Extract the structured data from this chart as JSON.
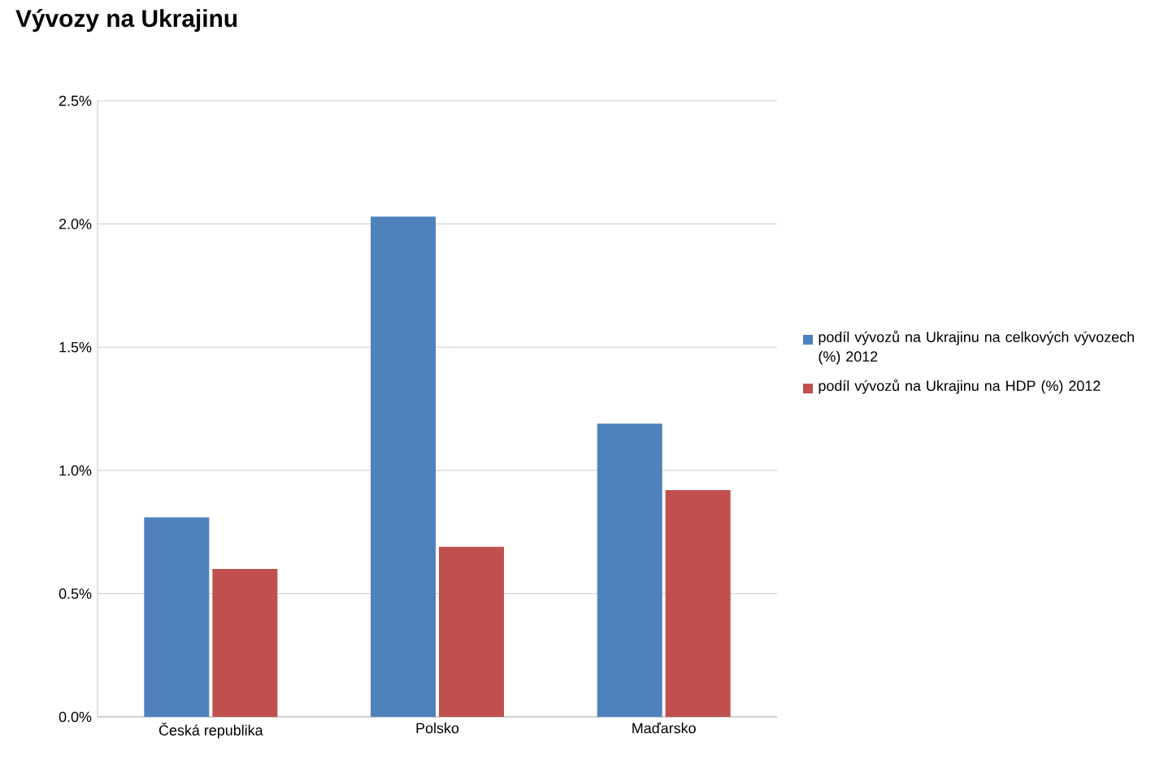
{
  "chart_data": {
    "type": "bar",
    "title": "Vývozy na Ukrajinu",
    "categories": [
      "Česká republika",
      "Polsko",
      "Maďarsko"
    ],
    "series": [
      {
        "name": "podíl vývozů na Ukrajinu na celkových vývozech (%) 2012",
        "color": "#4f81bd",
        "values": [
          0.81,
          2.03,
          1.19
        ]
      },
      {
        "name": "podíl vývozů na Ukrajinu na HDP (%) 2012",
        "color": "#c0504d",
        "values": [
          0.6,
          0.69,
          0.92
        ]
      }
    ],
    "ylim": [
      0,
      2.5
    ],
    "yticks": [
      {
        "value": 0,
        "label": "0.0%"
      },
      {
        "value": 0.5,
        "label": "0.5%"
      },
      {
        "value": 1,
        "label": "1.0%"
      },
      {
        "value": 1.5,
        "label": "1.5%"
      },
      {
        "value": 2,
        "label": "2.0%"
      },
      {
        "value": 2.5,
        "label": "2.5%"
      }
    ],
    "grid": "y",
    "legend": "right"
  }
}
